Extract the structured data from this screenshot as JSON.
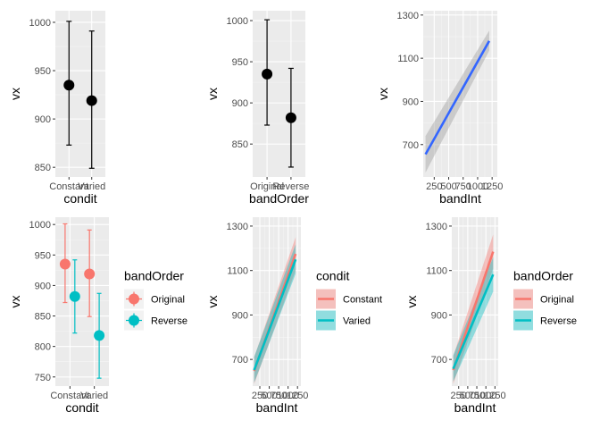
{
  "colors": {
    "panel_bg": "#ebebeb",
    "grid_major": "#ffffff",
    "grid_minor": "#f5f5f5",
    "black": "#000000",
    "original": "#f8766d",
    "reverse": "#00bfc4",
    "constant": "#f8766d",
    "varied": "#00bfc4",
    "fit_blue": "#3366ff",
    "ribbon_grey": "#999999"
  },
  "chart_data": [
    {
      "id": "p1",
      "type": "scatter",
      "xlabel": "condit",
      "ylabel": "vx",
      "categories": [
        "Constant",
        "Varied"
      ],
      "ylim": [
        840,
        1012
      ],
      "yticks": [
        850,
        900,
        950,
        1000
      ],
      "points": [
        {
          "x": "Constant",
          "y": 935,
          "lo": 873,
          "hi": 1001
        },
        {
          "x": "Varied",
          "y": 919,
          "lo": 849,
          "hi": 991
        }
      ]
    },
    {
      "id": "p2",
      "type": "scatter",
      "xlabel": "bandOrder",
      "ylabel": "vx",
      "categories": [
        "Original",
        "Reverse"
      ],
      "ylim": [
        810,
        1012
      ],
      "yticks": [
        850,
        900,
        950,
        1000
      ],
      "points": [
        {
          "x": "Original",
          "y": 935,
          "lo": 873,
          "hi": 1001
        },
        {
          "x": "Reverse",
          "y": 882,
          "lo": 822,
          "hi": 942
        }
      ]
    },
    {
      "id": "p3",
      "type": "line",
      "xlabel": "bandInt",
      "ylabel": "vx",
      "xticks": [
        "250",
        "500",
        "750",
        "1000",
        "1250"
      ],
      "xtick_values": [
        250,
        500,
        750,
        1000,
        1250
      ],
      "xlim": [
        60,
        1340
      ],
      "ylim": [
        550,
        1320
      ],
      "yticks": [
        700,
        900,
        1100,
        1300
      ],
      "series": [
        {
          "color_key": "fit_blue",
          "x": [
            100,
            1200
          ],
          "y": [
            655,
            1180
          ],
          "band_lo": [
            570,
            1135
          ],
          "band_hi": [
            740,
            1228
          ]
        }
      ]
    },
    {
      "id": "p4",
      "type": "scatter",
      "xlabel": "condit",
      "ylabel": "vx",
      "categories": [
        "Constant",
        "Varied"
      ],
      "ylim": [
        735,
        1012
      ],
      "yticks": [
        750,
        800,
        850,
        900,
        950,
        1000
      ],
      "legend": {
        "title": "bandOrder",
        "entries": [
          "Original",
          "Reverse"
        ]
      },
      "series": [
        {
          "name": "Original",
          "color_key": "original",
          "offset": -0.2,
          "points": [
            {
              "x": "Constant",
              "y": 935,
              "lo": 872,
              "hi": 1001
            },
            {
              "x": "Varied",
              "y": 919,
              "lo": 849,
              "hi": 991
            }
          ]
        },
        {
          "name": "Reverse",
          "color_key": "reverse",
          "offset": 0.2,
          "points": [
            {
              "x": "Constant",
              "y": 882,
              "lo": 822,
              "hi": 942
            },
            {
              "x": "Varied",
              "y": 818,
              "lo": 748,
              "hi": 887
            }
          ]
        }
      ]
    },
    {
      "id": "p5",
      "type": "line",
      "xlabel": "bandInt",
      "ylabel": "vx",
      "xticks": [
        "250",
        "500",
        "750",
        "1000",
        "1250"
      ],
      "xtick_values": [
        250,
        500,
        750,
        1000,
        1250
      ],
      "xlim": [
        60,
        1340
      ],
      "ylim": [
        580,
        1340
      ],
      "yticks": [
        700,
        900,
        1100,
        1300
      ],
      "legend": {
        "title": "condit",
        "entries": [
          "Constant",
          "Varied"
        ]
      },
      "series": [
        {
          "name": "Constant",
          "color_key": "constant",
          "x": [
            100,
            1200
          ],
          "y": [
            648,
            1175
          ],
          "band_lo": [
            590,
            1100
          ],
          "band_hi": [
            710,
            1250
          ]
        },
        {
          "name": "Varied",
          "color_key": "varied",
          "x": [
            100,
            1200
          ],
          "y": [
            652,
            1150
          ],
          "band_lo": [
            595,
            1085
          ],
          "band_hi": [
            712,
            1218
          ]
        }
      ]
    },
    {
      "id": "p6",
      "type": "line",
      "xlabel": "bandInt",
      "ylabel": "vx",
      "xticks": [
        "250",
        "500",
        "750",
        "1000",
        "1250"
      ],
      "xtick_values": [
        250,
        500,
        750,
        1000,
        1250
      ],
      "xlim": [
        60,
        1340
      ],
      "ylim": [
        580,
        1340
      ],
      "yticks": [
        700,
        900,
        1100,
        1300
      ],
      "legend": {
        "title": "bandOrder",
        "entries": [
          "Original",
          "Reverse"
        ]
      },
      "series": [
        {
          "name": "Original",
          "color_key": "original",
          "x": [
            100,
            1200
          ],
          "y": [
            652,
            1185
          ],
          "band_lo": [
            590,
            1110
          ],
          "band_hi": [
            715,
            1262
          ]
        },
        {
          "name": "Reverse",
          "color_key": "reverse",
          "x": [
            100,
            1200
          ],
          "y": [
            658,
            1082
          ],
          "band_lo": [
            600,
            1005
          ],
          "band_hi": [
            718,
            1160
          ]
        }
      ]
    }
  ]
}
